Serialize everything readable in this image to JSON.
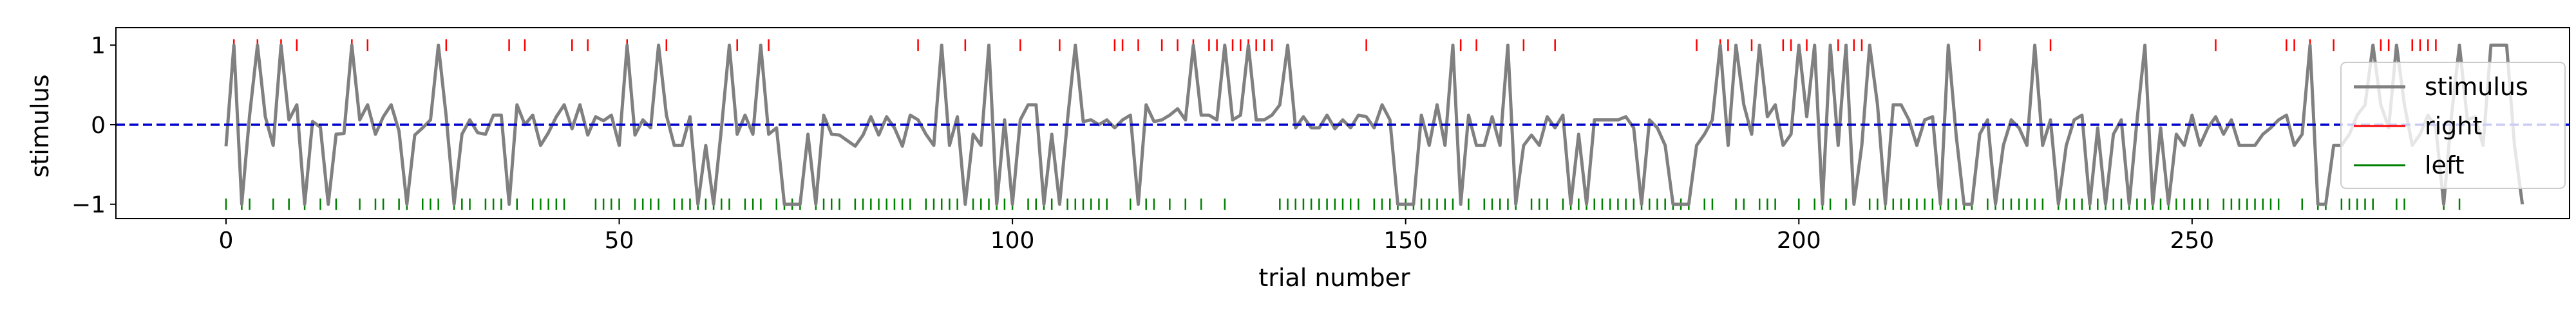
{
  "chart_data": {
    "type": "line",
    "xlabel": "trial number",
    "ylabel": "stimulus",
    "xlim": [
      -14,
      298
    ],
    "ylim": [
      -1.18,
      1.22
    ],
    "x_ticks": [
      0,
      50,
      100,
      150,
      200,
      250
    ],
    "y_ticks": [
      -1,
      0,
      1
    ],
    "y_tick_labels": [
      "−1",
      "0",
      "1"
    ],
    "grid": false,
    "legend_position": "upper-right",
    "reference_line": {
      "y": 0,
      "style": "dashed",
      "color": "#0000cc"
    },
    "series": [
      {
        "name": "stimulus",
        "color": "#808080",
        "x_start": 0,
        "values": [
          -0.27,
          1.0,
          -1.0,
          0.12,
          1.0,
          0.1,
          -0.26,
          1.0,
          0.06,
          0.25,
          -1.0,
          0.04,
          -0.03,
          -1.0,
          -0.12,
          -0.11,
          1.0,
          0.06,
          0.25,
          -0.12,
          0.1,
          0.25,
          -0.08,
          -1.0,
          -0.13,
          -0.04,
          0.06,
          1.0,
          0.1,
          -1.0,
          -0.12,
          0.06,
          -0.1,
          -0.12,
          0.12,
          0.12,
          -1.0,
          0.25,
          0.0,
          0.12,
          -0.26,
          -0.1,
          0.1,
          0.25,
          -0.05,
          0.25,
          -0.13,
          0.1,
          0.05,
          0.12,
          -0.26,
          1.0,
          -0.13,
          0.06,
          -0.04,
          1.0,
          0.12,
          -0.26,
          -0.26,
          0.1,
          -1.0,
          -0.26,
          -1.0,
          -0.04,
          1.0,
          -0.12,
          0.12,
          -0.12,
          1.0,
          -0.12,
          -0.04,
          -1.0,
          -1.0,
          -1.0,
          -0.12,
          -1.0,
          0.12,
          -0.12,
          -0.13,
          -0.2,
          -0.27,
          -0.13,
          0.1,
          -0.13,
          0.1,
          -0.04,
          -0.27,
          0.12,
          0.06,
          -0.12,
          -0.26,
          1.0,
          -0.26,
          0.1,
          -1.0,
          -0.12,
          -0.26,
          1.0,
          -1.0,
          0.06,
          -1.0,
          0.06,
          0.25,
          0.25,
          -1.0,
          -0.12,
          -1.0,
          0.06,
          1.0,
          0.04,
          0.06,
          0.0,
          0.06,
          -0.04,
          0.06,
          0.12,
          -1.0,
          0.25,
          0.04,
          0.06,
          0.12,
          0.2,
          0.06,
          1.0,
          0.12,
          0.12,
          0.06,
          1.0,
          0.06,
          0.12,
          1.0,
          0.06,
          0.06,
          0.12,
          0.25,
          1.0,
          -0.04,
          0.1,
          -0.04,
          -0.04,
          0.12,
          -0.05,
          0.06,
          -0.04,
          0.12,
          0.1,
          -0.04,
          0.25,
          0.06,
          -1.0,
          -1.0,
          -1.0,
          0.12,
          -0.26,
          0.25,
          -0.26,
          1.0,
          -1.0,
          0.12,
          -0.26,
          -0.26,
          0.1,
          -0.26,
          1.0,
          -1.0,
          -0.26,
          -0.13,
          -0.26,
          0.1,
          -0.04,
          0.12,
          -1.0,
          -0.12,
          -1.0,
          0.06,
          0.06,
          0.06,
          0.06,
          0.1,
          -0.04,
          -1.0,
          0.06,
          -0.04,
          -0.26,
          -1.0,
          -1.0,
          -1.0,
          -0.26,
          -0.12,
          0.06,
          1.0,
          -0.26,
          1.0,
          0.25,
          -0.12,
          1.0,
          0.1,
          0.25,
          -0.26,
          -0.12,
          1.0,
          0.1,
          1.0,
          -1.0,
          1.0,
          -0.26,
          1.0,
          -1.0,
          -0.26,
          1.0,
          0.25,
          -1.0,
          0.25,
          0.25,
          0.06,
          -0.26,
          0.06,
          0.1,
          -1.0,
          1.0,
          -0.13,
          -1.0,
          -1.0,
          -0.12,
          0.06,
          -1.0,
          -0.26,
          0.06,
          -0.04,
          -0.26,
          1.0,
          -0.26,
          0.06,
          -1.0,
          -0.26,
          0.06,
          0.12,
          -1.0,
          -0.04,
          -1.0,
          -0.12,
          0.06,
          -1.0,
          0.06,
          1.0,
          -1.0,
          -0.04,
          -1.0,
          -0.12,
          -0.26,
          0.12,
          -0.26,
          -0.04,
          0.1,
          -0.12,
          0.06,
          -0.26,
          -0.26,
          -0.26,
          -0.12,
          -0.04,
          0.06,
          0.12,
          -0.26,
          -0.12,
          1.0,
          -1.0,
          -1.0,
          -0.26,
          -0.26,
          -0.12,
          0.12,
          0.25,
          1.0,
          0.25,
          -0.04,
          1.0,
          0.25,
          -0.26,
          -0.12,
          0.12,
          -0.04,
          -1.0,
          0.12,
          1.0,
          0.06,
          0.1,
          -0.26,
          1.0,
          1.0,
          1.0,
          -0.26,
          -1.0
        ]
      },
      {
        "name": "right",
        "color": "#ff0000",
        "marker_y": 1.0,
        "x": [
          1,
          4,
          7,
          9,
          16,
          18,
          28,
          36,
          38,
          44,
          46,
          51,
          56,
          65,
          69,
          88,
          94,
          101,
          106,
          113,
          114,
          116,
          119,
          121,
          123,
          125,
          126,
          128,
          129,
          130,
          131,
          132,
          133,
          145,
          157,
          159,
          165,
          169,
          187,
          190,
          191,
          194,
          198,
          199,
          201,
          205,
          207,
          208,
          223,
          232,
          253,
          262,
          263,
          265,
          268,
          274,
          275,
          278,
          279,
          280,
          281
        ]
      },
      {
        "name": "left",
        "color": "#008000",
        "marker_y": -1.0,
        "x": [
          0,
          2,
          3,
          6,
          8,
          10,
          12,
          14,
          17,
          19,
          20,
          22,
          23,
          25,
          26,
          27,
          29,
          30,
          31,
          33,
          34,
          35,
          37,
          39,
          40,
          41,
          42,
          43,
          47,
          48,
          49,
          50,
          52,
          53,
          54,
          55,
          57,
          58,
          59,
          60,
          61,
          62,
          63,
          64,
          66,
          67,
          68,
          70,
          71,
          72,
          73,
          75,
          76,
          77,
          78,
          80,
          81,
          82,
          83,
          84,
          85,
          86,
          87,
          89,
          90,
          91,
          92,
          93,
          95,
          96,
          97,
          98,
          99,
          100,
          102,
          103,
          104,
          105,
          107,
          108,
          109,
          110,
          111,
          112,
          115,
          117,
          118,
          120,
          122,
          124,
          127,
          134,
          135,
          136,
          137,
          138,
          139,
          140,
          141,
          142,
          143,
          144,
          146,
          147,
          148,
          149,
          150,
          151,
          152,
          153,
          154,
          155,
          156,
          158,
          160,
          161,
          162,
          163,
          164,
          166,
          167,
          168,
          170,
          171,
          172,
          173,
          174,
          175,
          176,
          177,
          178,
          179,
          180,
          181,
          182,
          183,
          184,
          185,
          186,
          188,
          189,
          192,
          193,
          195,
          196,
          197,
          200,
          202,
          203,
          204,
          206,
          209,
          210,
          211,
          212,
          213,
          214,
          215,
          216,
          217,
          218,
          219,
          220,
          221,
          222,
          224,
          225,
          226,
          227,
          228,
          229,
          230,
          231,
          233,
          234,
          235,
          236,
          237,
          238,
          239,
          240,
          241,
          242,
          243,
          244,
          245,
          246,
          247,
          248,
          249,
          250,
          251,
          252,
          254,
          255,
          256,
          257,
          258,
          259,
          260,
          261,
          264,
          266,
          267,
          269,
          270,
          271,
          272,
          273,
          276,
          277,
          282,
          284
        ]
      }
    ]
  }
}
